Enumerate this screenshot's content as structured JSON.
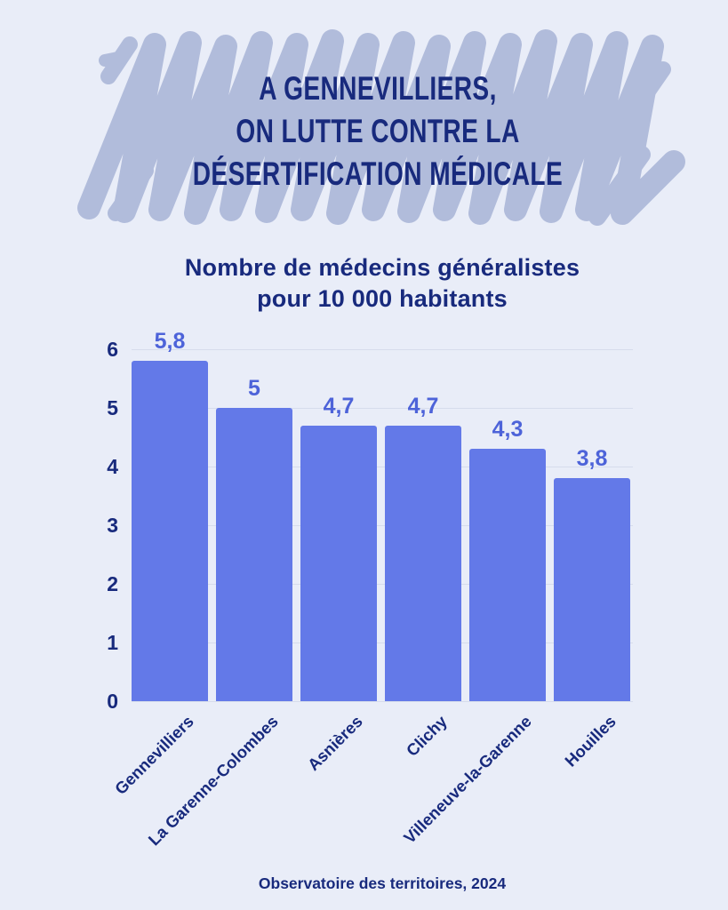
{
  "page": {
    "background_color": "#e9edf8",
    "accent_navy": "#182a7d"
  },
  "header": {
    "lines": [
      "A GENNEVILLIERS,",
      "ON LUTTE CONTRE LA",
      "DÉSERTIFICATION MÉDICALE"
    ],
    "scribble_color": "#b1bcdb",
    "text_color": "#182a7d"
  },
  "chart_data": {
    "type": "bar",
    "title": "Nombre de médecins généralistes pour 10 000 habitants",
    "title_lines": [
      "Nombre de médecins généralistes",
      "pour 10 000 habitants"
    ],
    "categories": [
      "Gennevilliers",
      "La Garenne-Colombes",
      "Asnières",
      "Clichy",
      "Villeneuve-la-Garenne",
      "Houilles"
    ],
    "values": [
      5.8,
      5,
      4.7,
      4.7,
      4.3,
      3.8
    ],
    "value_labels": [
      "5,8",
      "5",
      "4,7",
      "4,7",
      "4,3",
      "3,8"
    ],
    "xlabel": "",
    "ylabel": "",
    "y_ticks": [
      0,
      1,
      2,
      3,
      4,
      5,
      6
    ],
    "ylim": [
      0,
      6
    ],
    "grid": true,
    "legend": false,
    "bar_color": "#6379e8",
    "value_label_color": "#4d63d9",
    "axis_text_color": "#182a7d",
    "gridline_color": "#d6dcec",
    "x_label_rotation_deg": -45
  },
  "footer": {
    "source": "Observatoire des territoires, 2024"
  }
}
